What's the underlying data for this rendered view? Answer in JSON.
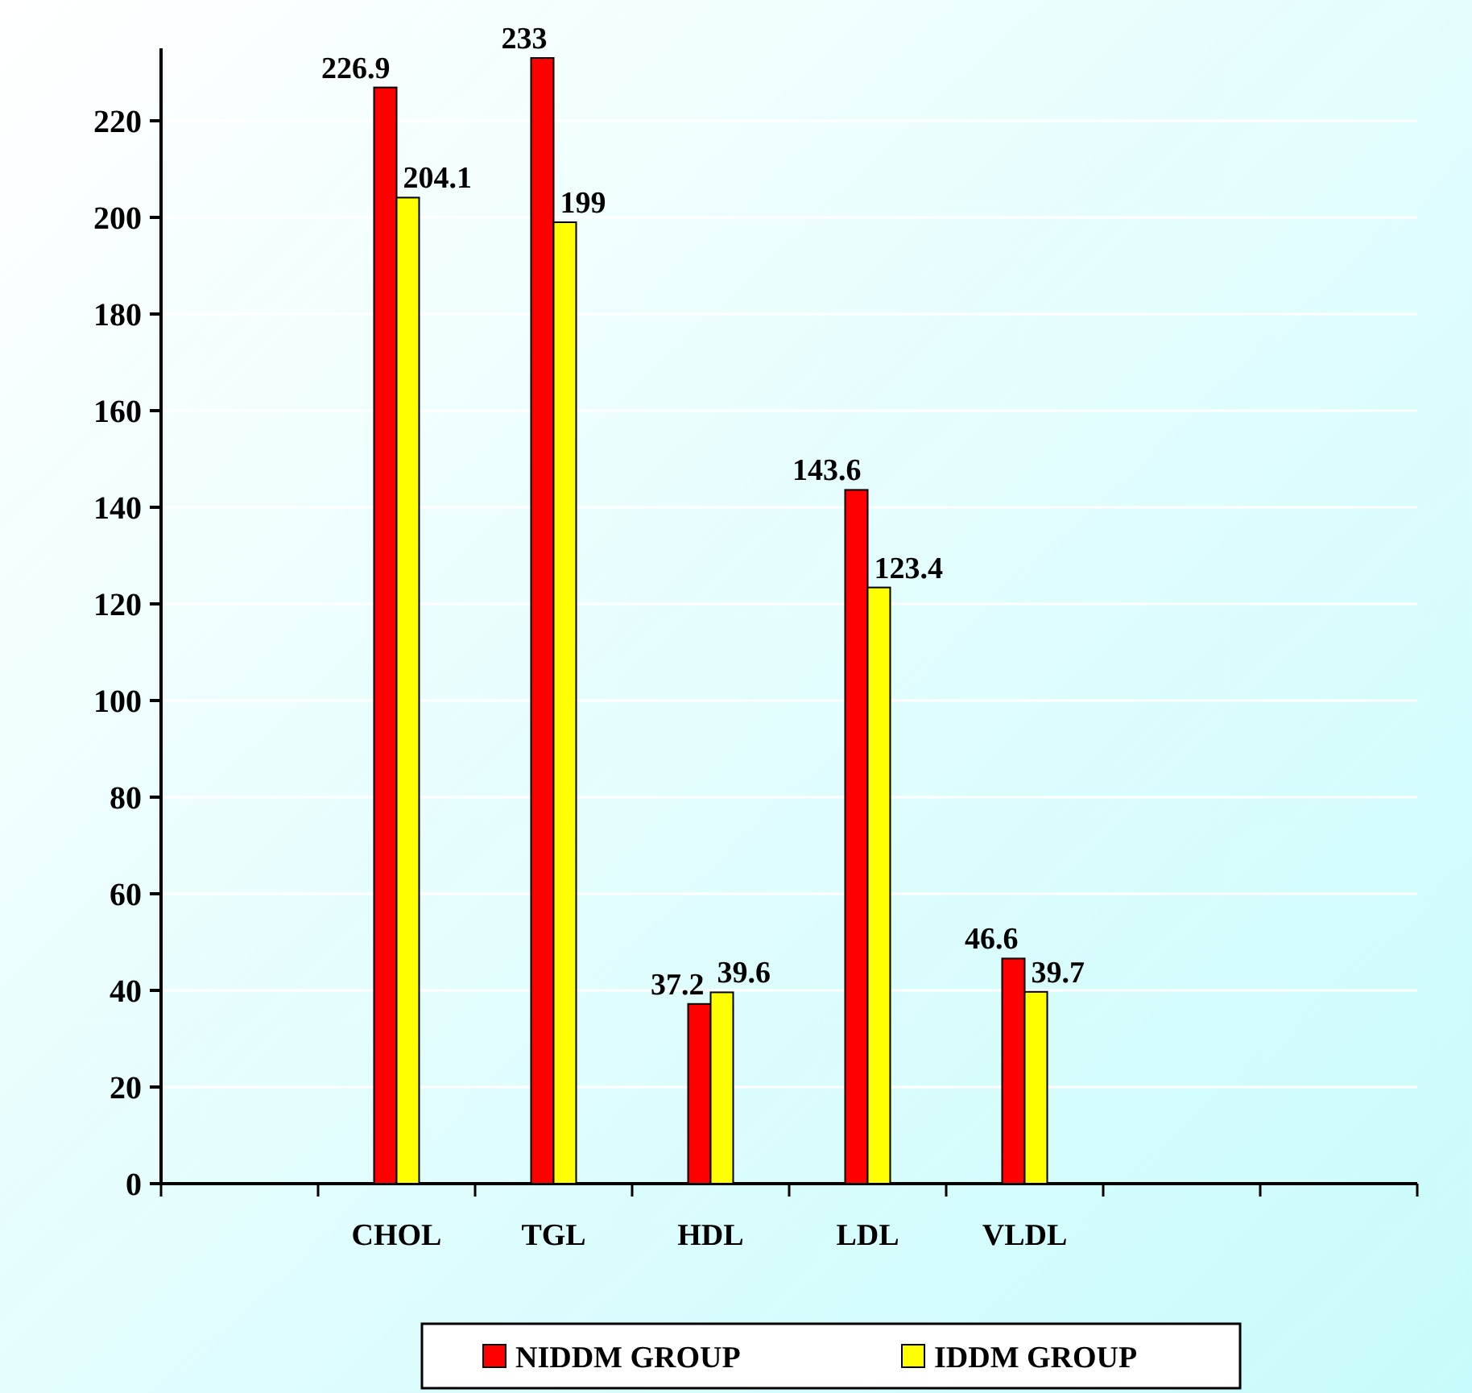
{
  "chart_data": {
    "type": "bar",
    "categories": [
      null,
      "CHOL",
      "TGL",
      "HDL",
      "LDL",
      "VLDL",
      null,
      null
    ],
    "series": [
      {
        "name": "NIDDM GROUP",
        "color": "#ff0000",
        "values": [
          null,
          226.9,
          233,
          37.2,
          143.6,
          46.6,
          null,
          null
        ]
      },
      {
        "name": "IDDM GROUP",
        "color": "#ffff00",
        "values": [
          null,
          204.1,
          199,
          39.6,
          123.4,
          39.7,
          null,
          null
        ]
      }
    ],
    "ylim": [
      0,
      235
    ],
    "yticks": [
      0,
      20,
      40,
      60,
      80,
      100,
      120,
      140,
      160,
      180,
      200,
      220
    ],
    "grid": "y",
    "data_labels": true,
    "legend": "bottom"
  }
}
